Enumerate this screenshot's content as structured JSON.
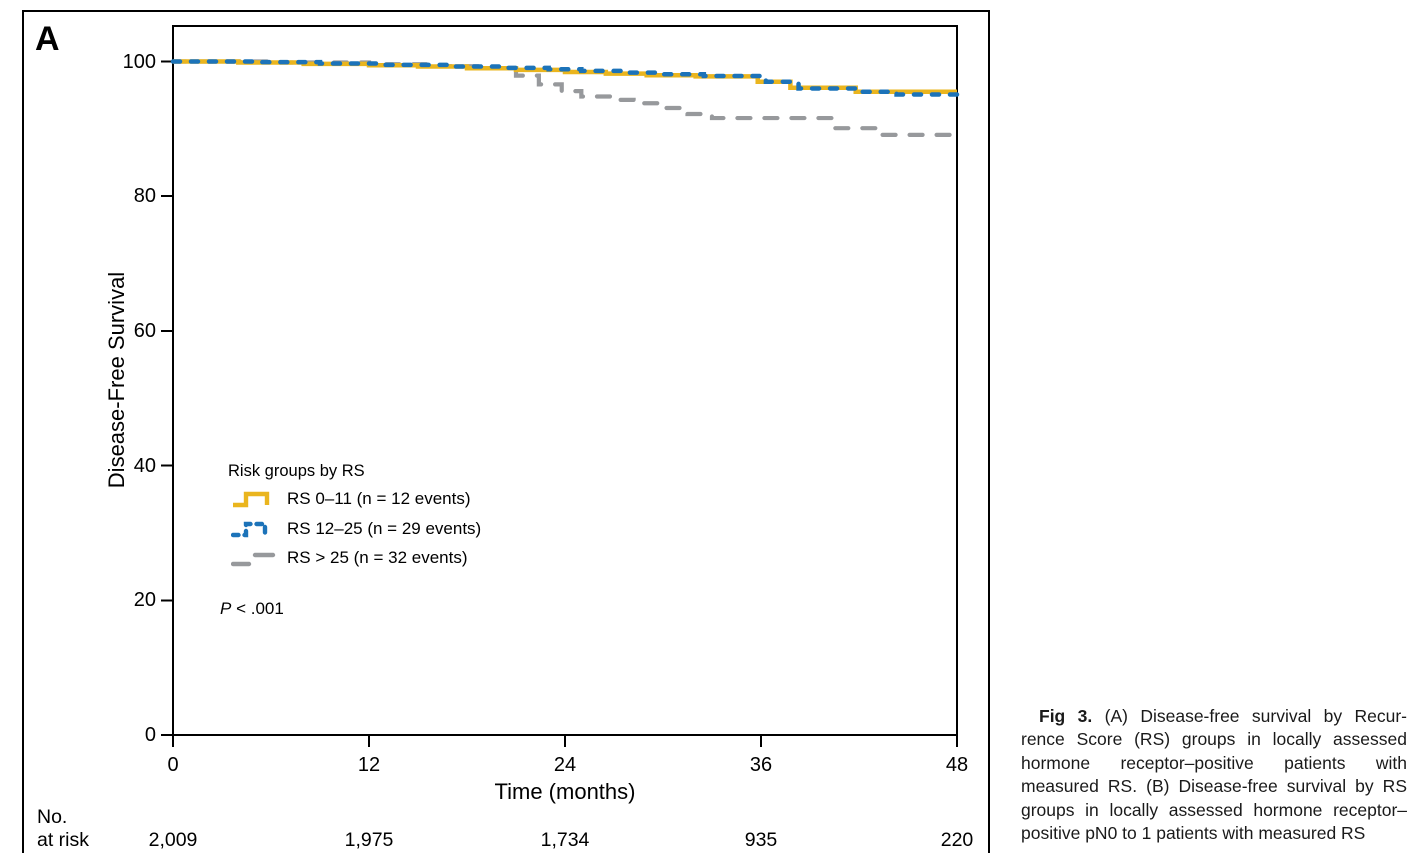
{
  "panel_label": "A",
  "chart_data": {
    "type": "line",
    "subtype": "kaplan-meier-step",
    "xlabel": "Time (months)",
    "ylabel": "Disease-Free Survival",
    "xlim": [
      0,
      48
    ],
    "ylim": [
      0,
      100
    ],
    "x_ticks": [
      0,
      12,
      24,
      36,
      48
    ],
    "x_tick_labels": [
      "0",
      "12",
      "24",
      "36",
      "48"
    ],
    "y_ticks": [
      0,
      20,
      40,
      60,
      80,
      100
    ],
    "y_tick_labels": [
      "0",
      "20",
      "40",
      "60",
      "80",
      "100"
    ],
    "grid": false,
    "legend_position": "lower-left-inside",
    "legend_title": "Risk groups by RS",
    "p_value": {
      "symbol": "P",
      "rest": " < .001"
    },
    "series": [
      {
        "name": "RS 0–11 (n = 12 events)",
        "color": "#EAB51E",
        "style": "solid",
        "points": [
          [
            0,
            100
          ],
          [
            4,
            99.85
          ],
          [
            8,
            99.65
          ],
          [
            12,
            99.45
          ],
          [
            15,
            99.25
          ],
          [
            18,
            99.0
          ],
          [
            21,
            98.75
          ],
          [
            24,
            98.45
          ],
          [
            26.5,
            98.2
          ],
          [
            29,
            97.95
          ],
          [
            32,
            97.8
          ],
          [
            35.8,
            97.0
          ],
          [
            37.8,
            96.1
          ],
          [
            41.8,
            95.5
          ],
          [
            48,
            95.5
          ]
        ]
      },
      {
        "name": "RS 12–25 (n = 29 events)",
        "color": "#1C73B9",
        "style": "dashed",
        "points": [
          [
            0,
            100
          ],
          [
            5,
            99.9
          ],
          [
            9,
            99.7
          ],
          [
            13,
            99.5
          ],
          [
            17,
            99.25
          ],
          [
            20,
            99.05
          ],
          [
            23,
            98.85
          ],
          [
            25,
            98.6
          ],
          [
            27.5,
            98.35
          ],
          [
            30,
            98.1
          ],
          [
            32.5,
            97.85
          ],
          [
            36.3,
            97.0
          ],
          [
            38.3,
            96.0
          ],
          [
            42.2,
            95.5
          ],
          [
            44.3,
            95.1
          ],
          [
            48,
            95.1
          ]
        ]
      },
      {
        "name": "RS > 25 (n = 32 events)",
        "color": "#97999C",
        "style": "long-dash",
        "points": [
          [
            0,
            100
          ],
          [
            6,
            99.85
          ],
          [
            12,
            99.6
          ],
          [
            16,
            99.3
          ],
          [
            19,
            99.0
          ],
          [
            21,
            97.9
          ],
          [
            22.4,
            96.6
          ],
          [
            23.8,
            95.6
          ],
          [
            25,
            94.8
          ],
          [
            26.8,
            94.3
          ],
          [
            28.2,
            93.8
          ],
          [
            30.2,
            93.1
          ],
          [
            31.5,
            92.2
          ],
          [
            33,
            91.6
          ],
          [
            40.4,
            90.1
          ],
          [
            43.3,
            89.1
          ],
          [
            48,
            89.1
          ]
        ]
      }
    ],
    "at_risk": {
      "label_line1": "No.",
      "label_line2": "at risk",
      "values": [
        "2,009",
        "1,975",
        "1,734",
        "935",
        "220"
      ]
    }
  },
  "caption": {
    "lead": "Fig 3.",
    "line1_rest": " (A) Disease-free survival by Recur-",
    "lines": [
      "rence Score (RS) groups in locally assessed",
      "hormone receptor–positive patients with",
      "measured RS. (B) Disease-free survival by RS",
      "groups in locally assessed hormone receptor–",
      "positive pN0 to 1 patients with measured RS"
    ]
  }
}
